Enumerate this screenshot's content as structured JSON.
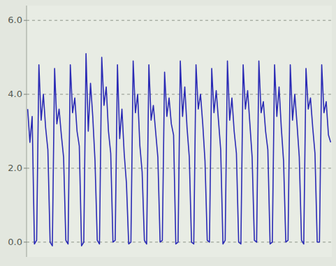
{
  "chart_data": {
    "type": "line",
    "categories": [
      null,
      null,
      null,
      null,
      null,
      null,
      null,
      null,
      null,
      null,
      null,
      null,
      null,
      null,
      null,
      null,
      null,
      null,
      null,
      null,
      null,
      null,
      null,
      null,
      null,
      null,
      null,
      null,
      null,
      null,
      null,
      null,
      null,
      null,
      null,
      null,
      null,
      null,
      null,
      null,
      null,
      null,
      null,
      null,
      null,
      null,
      null,
      null,
      null,
      null,
      null,
      null,
      null,
      null,
      null,
      null,
      null,
      null,
      null,
      null,
      null,
      null,
      null,
      null,
      null,
      null,
      null,
      null,
      null,
      null,
      null,
      null,
      null,
      null,
      null,
      null,
      null,
      null,
      null,
      null,
      null,
      null,
      null,
      null,
      null,
      null,
      null,
      null,
      null,
      null,
      null,
      null,
      null,
      null,
      null,
      null,
      null,
      null,
      null,
      null,
      null,
      null,
      null,
      null,
      null,
      null,
      null,
      null,
      null,
      null,
      null,
      null,
      null,
      null,
      null,
      null,
      null,
      null,
      null,
      null,
      null,
      null,
      null,
      null,
      null,
      null,
      null,
      null,
      null,
      null,
      null,
      null,
      null,
      null,
      null,
      null
    ],
    "values": [
      3.6,
      2.7,
      3.4,
      -0.05,
      0.05,
      4.8,
      3.3,
      4.0,
      3.1,
      2.5,
      0.0,
      -0.1,
      4.7,
      3.2,
      3.6,
      2.9,
      2.3,
      0.05,
      -0.05,
      4.8,
      3.5,
      3.9,
      3.0,
      2.6,
      -0.1,
      0.0,
      5.1,
      3.0,
      4.3,
      3.4,
      2.2,
      0.05,
      -0.05,
      5.0,
      3.7,
      4.2,
      3.0,
      2.4,
      0.0,
      0.05,
      4.8,
      2.8,
      3.6,
      2.4,
      1.6,
      -0.05,
      0.0,
      4.9,
      3.5,
      4.0,
      2.6,
      1.9,
      0.05,
      -0.05,
      4.8,
      3.3,
      3.7,
      3.0,
      2.3,
      0.0,
      0.05,
      4.6,
      3.4,
      3.9,
      3.2,
      2.9,
      -0.05,
      0.0,
      4.9,
      3.4,
      4.2,
      3.1,
      2.3,
      0.0,
      -0.05,
      4.8,
      3.6,
      4.0,
      3.2,
      2.2,
      0.05,
      0.0,
      4.7,
      3.5,
      4.1,
      3.3,
      2.5,
      -0.05,
      0.05,
      4.9,
      3.3,
      3.9,
      3.0,
      2.4,
      0.0,
      -0.05,
      4.8,
      3.6,
      4.1,
      3.2,
      2.3,
      0.05,
      0.0,
      4.9,
      3.5,
      3.8,
      3.0,
      2.5,
      -0.05,
      0.0,
      4.8,
      3.4,
      4.2,
      3.1,
      2.2,
      0.0,
      0.05,
      4.8,
      3.3,
      4.0,
      3.2,
      2.3,
      0.05,
      -0.05,
      4.7,
      3.6,
      3.9,
      3.1,
      2.4,
      0.0,
      0.0,
      4.8,
      3.5,
      3.8,
      2.9,
      2.7
    ],
    "color": "#2b2bb5",
    "ylim": [
      -0.4,
      6.4
    ],
    "yticks": [
      {
        "value": 0,
        "label": "0.0"
      },
      {
        "value": 2,
        "label": "2.0"
      },
      {
        "value": 4,
        "label": "4.0"
      },
      {
        "value": 6,
        "label": "6.0"
      }
    ],
    "grid": true,
    "tick_labels": "y"
  }
}
